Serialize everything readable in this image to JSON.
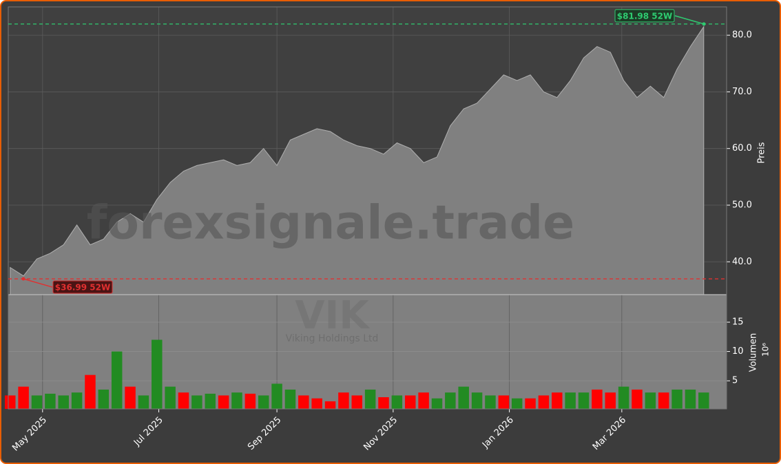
{
  "chart_data": {
    "type": "area",
    "watermark": "forexsignale.trade",
    "ticker": "VIK",
    "company": "Viking Holdings Ltd",
    "ylabel": "Preis",
    "y2label": "Volumen",
    "y2_offset_label": "10⁶",
    "x": [
      "2025-04-14",
      "2025-04-21",
      "2025-04-28",
      "2025-05-05",
      "2025-05-12",
      "2025-05-19",
      "2025-05-26",
      "2025-06-02",
      "2025-06-09",
      "2025-06-16",
      "2025-06-23",
      "2025-06-30",
      "2025-07-07",
      "2025-07-14",
      "2025-07-21",
      "2025-07-28",
      "2025-08-04",
      "2025-08-11",
      "2025-08-18",
      "2025-08-25",
      "2025-09-01",
      "2025-09-08",
      "2025-09-15",
      "2025-09-22",
      "2025-09-29",
      "2025-10-06",
      "2025-10-13",
      "2025-10-20",
      "2025-10-27",
      "2025-11-03",
      "2025-11-10",
      "2025-11-17",
      "2025-11-24",
      "2025-12-01",
      "2025-12-08",
      "2025-12-15",
      "2025-12-22",
      "2025-12-29",
      "2026-01-05",
      "2026-01-12",
      "2026-01-19",
      "2026-01-26",
      "2026-02-02",
      "2026-02-09",
      "2026-02-16",
      "2026-02-23",
      "2026-03-02",
      "2026-03-09",
      "2026-03-16",
      "2026-03-23",
      "2026-03-30",
      "2026-04-06",
      "2026-04-13"
    ],
    "series": [
      {
        "name": "Preis",
        "color": "#808080",
        "values": [
          39,
          37.5,
          40.5,
          41.5,
          43,
          46.5,
          43,
          44,
          47,
          48.5,
          47,
          51,
          54,
          56,
          57,
          57.5,
          58,
          57,
          57.5,
          60,
          57,
          61.5,
          62.5,
          63.5,
          63,
          61.5,
          60.5,
          60,
          59,
          61,
          60,
          57.5,
          58.5,
          64,
          67,
          68,
          70.5,
          73,
          72,
          73,
          70,
          69,
          72,
          76,
          78,
          77,
          72,
          69,
          71,
          69,
          74,
          78,
          81.5
        ]
      },
      {
        "name": "Volumen",
        "axis": "y2",
        "values": [
          2.5,
          4,
          2.5,
          2.8,
          2.5,
          3,
          6,
          3.5,
          10,
          4,
          2.5,
          12,
          4,
          3,
          2.5,
          2.8,
          2.5,
          3,
          2.8,
          2.5,
          4.5,
          3.5,
          2.5,
          2,
          1.5,
          3,
          2.5,
          3.5,
          2.2,
          2.5,
          2.5,
          3,
          2,
          3,
          4,
          3,
          2.5,
          2.5,
          2,
          2,
          2.5,
          3,
          3,
          3,
          3.5,
          3,
          4,
          3.5,
          3,
          3,
          3.5,
          3.5,
          3
        ],
        "colors": [
          "#ff0000",
          "#ff0000",
          "#228b22",
          "#228b22",
          "#228b22",
          "#228b22",
          "#ff0000",
          "#228b22",
          "#228b22",
          "#ff0000",
          "#228b22",
          "#228b22",
          "#228b22",
          "#ff0000",
          "#228b22",
          "#228b22",
          "#ff0000",
          "#228b22",
          "#ff0000",
          "#228b22",
          "#228b22",
          "#228b22",
          "#ff0000",
          "#ff0000",
          "#ff0000",
          "#ff0000",
          "#ff0000",
          "#228b22",
          "#ff0000",
          "#228b22",
          "#ff0000",
          "#ff0000",
          "#228b22",
          "#228b22",
          "#228b22",
          "#228b22",
          "#228b22",
          "#ff0000",
          "#228b22",
          "#ff0000",
          "#ff0000",
          "#ff0000",
          "#228b22",
          "#228b22",
          "#ff0000",
          "#ff0000",
          "#228b22",
          "#ff0000",
          "#228b22",
          "#ff0000",
          "#228b22",
          "#228b22",
          "#228b22"
        ]
      }
    ],
    "xlim": [
      "2025-04-13",
      "2026-04-25"
    ],
    "xticks": [
      {
        "value": "2025-05-01",
        "label": "May 2025"
      },
      {
        "value": "2025-07-01",
        "label": "Jul 2025"
      },
      {
        "value": "2025-09-01",
        "label": "Sep 2025"
      },
      {
        "value": "2025-11-01",
        "label": "Nov 2025"
      },
      {
        "value": "2026-01-01",
        "label": "Jan 2026"
      },
      {
        "value": "2026-03-01",
        "label": "Mar 2026"
      }
    ],
    "ylim": [
      34.2,
      85
    ],
    "yticks": [
      {
        "value": 40,
        "label": "40.0"
      },
      {
        "value": 50,
        "label": "50.0"
      },
      {
        "value": 60,
        "label": "60.0"
      },
      {
        "value": 70,
        "label": "70.0"
      },
      {
        "value": 80,
        "label": "80.0"
      }
    ],
    "y2lim": [
      0.2,
      19.7
    ],
    "y2ticks": [
      5,
      10,
      15
    ],
    "grid": true,
    "annotations": [
      {
        "text": "$81.98 52W",
        "value": 81.98,
        "color": "#2ecc71"
      },
      {
        "text": "$36.99 52W",
        "value": 36.99,
        "color": "#e03030"
      }
    ]
  }
}
